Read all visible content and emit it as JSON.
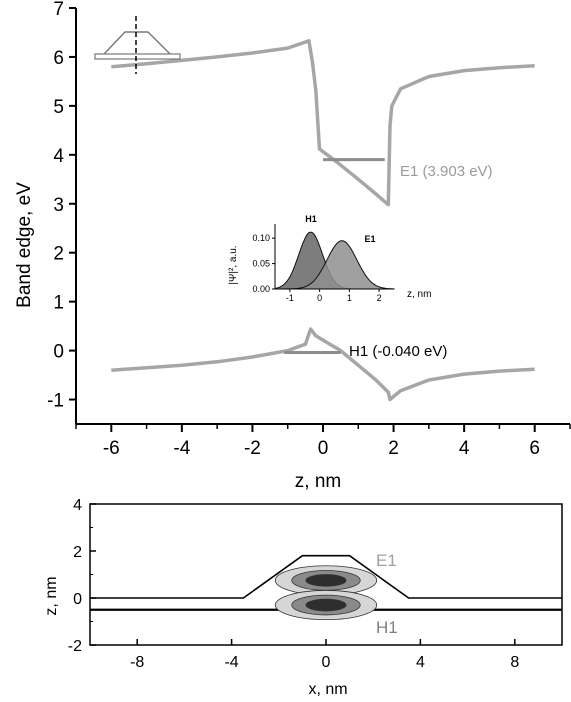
{
  "chart_data": [
    {
      "type": "line",
      "xlabel": "z, nm",
      "ylabel": "Band edge, eV",
      "xlim": [
        -7,
        7
      ],
      "ylim": [
        -1.5,
        7
      ],
      "x_ticks": [
        -6,
        -4,
        -2,
        0,
        2,
        4,
        6
      ],
      "y_ticks": [
        -1,
        0,
        1,
        2,
        3,
        4,
        5,
        6,
        7
      ],
      "grid": false,
      "series": [
        {
          "role": "conduction-band",
          "points": [
            [
              -6,
              5.8
            ],
            [
              -5,
              5.86
            ],
            [
              -4,
              5.93
            ],
            [
              -3,
              6.0
            ],
            [
              -2,
              6.08
            ],
            [
              -1,
              6.18
            ],
            [
              -0.4,
              6.33
            ],
            [
              -0.3,
              5.9
            ],
            [
              -0.2,
              5.3
            ],
            [
              -0.15,
              4.7
            ],
            [
              -0.1,
              4.12
            ],
            [
              0.4,
              3.85
            ],
            [
              1.0,
              3.5
            ],
            [
              1.5,
              3.2
            ],
            [
              1.85,
              2.98
            ],
            [
              1.9,
              4.6
            ],
            [
              1.95,
              5.0
            ],
            [
              2.2,
              5.35
            ],
            [
              3,
              5.6
            ],
            [
              4,
              5.72
            ],
            [
              5,
              5.78
            ],
            [
              6,
              5.82
            ]
          ]
        },
        {
          "role": "valence-band",
          "points": [
            [
              -6,
              -0.4
            ],
            [
              -5,
              -0.35
            ],
            [
              -4,
              -0.3
            ],
            [
              -3,
              -0.23
            ],
            [
              -2,
              -0.13
            ],
            [
              -1,
              0.0
            ],
            [
              -0.5,
              0.13
            ],
            [
              -0.35,
              0.44
            ],
            [
              -0.2,
              0.3
            ],
            [
              0.5,
              0.0
            ],
            [
              1.0,
              -0.3
            ],
            [
              1.5,
              -0.6
            ],
            [
              1.85,
              -0.85
            ],
            [
              1.9,
              -1.0
            ],
            [
              2.2,
              -0.82
            ],
            [
              3,
              -0.6
            ],
            [
              4,
              -0.48
            ],
            [
              5,
              -0.42
            ],
            [
              6,
              -0.38
            ]
          ]
        }
      ],
      "levels": [
        {
          "name": "E1",
          "label": "E1 (3.903 eV)",
          "value": 3.903,
          "x_range": [
            0,
            1.75
          ]
        },
        {
          "name": "H1",
          "label": "H1 (-0.040 eV)",
          "value": -0.04,
          "x_range": [
            -1.1,
            0.5
          ]
        }
      ],
      "inset": {
        "type": "area",
        "xlabel": "z, nm",
        "ylabel": "|Ψ|², a.u.",
        "xlim": [
          -1.5,
          2.5
        ],
        "ylim": [
          0,
          0.12
        ],
        "x_ticks": [
          -1,
          0,
          1,
          2
        ],
        "y_ticks": [
          0.0,
          0.05,
          0.1
        ],
        "y_tick_labels": [
          "0.00",
          "0.05",
          "0.10"
        ],
        "series": [
          {
            "name": "H1",
            "peak_z": -0.3,
            "peak_value": 0.112,
            "sigma": 0.4
          },
          {
            "name": "E1",
            "peak_z": 0.75,
            "peak_value": 0.095,
            "sigma": 0.5
          }
        ]
      }
    },
    {
      "type": "contour",
      "xlabel": "x, nm",
      "ylabel": "z, nm",
      "xlim": [
        -10,
        10
      ],
      "ylim": [
        -2,
        4
      ],
      "x_ticks": [
        -8,
        -4,
        0,
        4,
        8
      ],
      "y_ticks": [
        -2,
        0,
        2,
        4
      ],
      "labels": [
        "E1",
        "H1"
      ],
      "dot_profile": [
        [
          -10,
          0
        ],
        [
          -3.5,
          0
        ],
        [
          -1,
          1.8
        ],
        [
          1,
          1.8
        ],
        [
          3.5,
          0
        ],
        [
          10,
          0
        ]
      ],
      "substrate_line_z": -0.5,
      "contours": [
        {
          "name": "E1",
          "center": [
            0,
            0.75
          ]
        },
        {
          "name": "H1",
          "center": [
            0,
            -0.3
          ]
        }
      ]
    }
  ],
  "colors": {
    "axis": "#000000",
    "band": "#a6a6a6",
    "level": "#8c8c8c",
    "label_gray": "#9a9a9a",
    "h1_fill": "#666666",
    "e1_fill": "#8f8f8f",
    "contour_outer": "#d6d6d6",
    "contour_mid": "#8a8a8a",
    "contour_inner": "#2e2e2e"
  },
  "icons": [
    "quantum-dot-sketch-icon"
  ]
}
